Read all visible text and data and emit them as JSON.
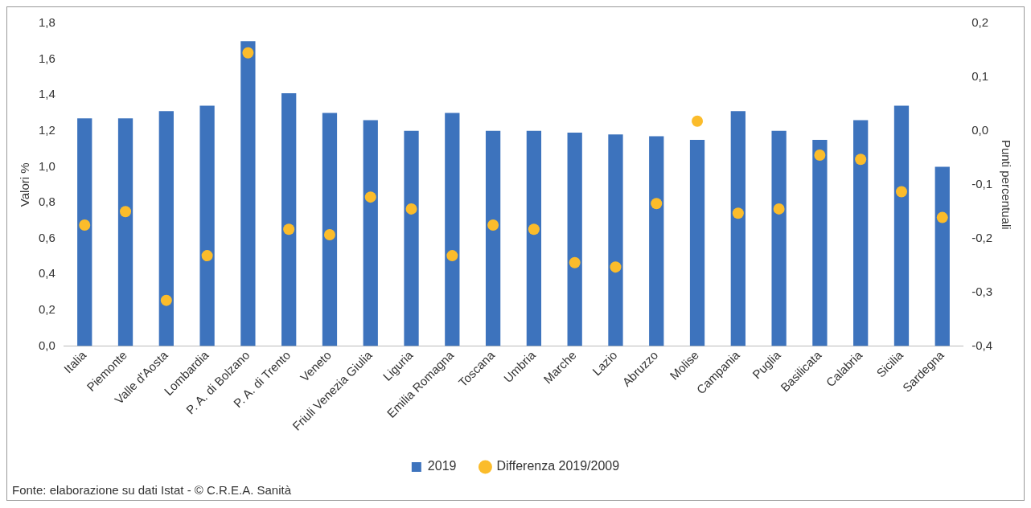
{
  "chart_data": {
    "type": "bar",
    "ylabel": "Valori %",
    "y2label": "Punti percentuali",
    "categories": [
      "Italia",
      "Piemonte",
      "Valle d'Aosta",
      "Lombardia",
      "P. A. di Bolzano",
      "P. A. di Trento",
      "Veneto",
      "Friuli Venezia Giulia",
      "Liguria",
      "Emilia Romagna",
      "Toscana",
      "Umbria",
      "Marche",
      "Lazio",
      "Abruzzo",
      "Molise",
      "Campania",
      "Puglia",
      "Basilicata",
      "Calabria",
      "Sicilia",
      "Sardegna"
    ],
    "series": [
      {
        "name": "2019",
        "color": "#3d73bd",
        "values": [
          1.27,
          1.27,
          1.31,
          1.34,
          1.7,
          1.41,
          1.3,
          1.26,
          1.2,
          1.3,
          1.2,
          1.2,
          1.19,
          1.18,
          1.17,
          1.15,
          1.31,
          1.2,
          1.15,
          1.26,
          1.34,
          1.0
        ]
      },
      {
        "name": "Differenza 2019/2009",
        "type": "scatter",
        "axis": "y2",
        "color": "#fbbc2b",
        "marker": "circle",
        "x": [
          "Italia",
          "Piemonte",
          "Valle d'Aosta",
          "Lombardia",
          "P. A. di Bolzano",
          "P. A. di Trento",
          "Veneto",
          "Friuli Venezia Giulia",
          "Liguria",
          "Emilia Romagna",
          "Toscana",
          "Umbria",
          "Marche",
          "Lazio",
          "Abruzzo",
          "Molise",
          "Campania",
          "Puglia",
          "Basilicata",
          "Calabria",
          "Sicilia",
          "Sardegna"
        ],
        "values": [
          -0.175,
          -0.15,
          -0.315,
          -0.232,
          0.145,
          -0.183,
          -0.193,
          -0.123,
          -0.145,
          -0.232,
          -0.175,
          -0.183,
          -0.245,
          -0.253,
          -0.135,
          0.018,
          -0.153,
          -0.145,
          -0.045,
          -0.053,
          -0.113,
          -0.161
        ]
      }
    ],
    "ylim": [
      0,
      1.8
    ],
    "yticks": [
      {
        "value": 0,
        "label": "0,0"
      },
      {
        "value": 0.2,
        "label": "0,2"
      },
      {
        "value": 0.4,
        "label": "0,4"
      },
      {
        "value": 0.6,
        "label": "0,6"
      },
      {
        "value": 0.8,
        "label": "0,8"
      },
      {
        "value": 1,
        "label": "1,0"
      },
      {
        "value": 1.2,
        "label": "1,2"
      },
      {
        "value": 1.4,
        "label": "1,4"
      },
      {
        "value": 1.6,
        "label": "1,6"
      },
      {
        "value": 1.8,
        "label": "1,8"
      }
    ],
    "y2lim": [
      -0.4,
      0.2
    ],
    "y2ticks": [
      {
        "value": -0.4,
        "label": "-0,4"
      },
      {
        "value": -0.3,
        "label": "-0,3"
      },
      {
        "value": -0.2,
        "label": "-0,2"
      },
      {
        "value": -0.1,
        "label": "-0,1"
      },
      {
        "value": 0,
        "label": "0,0"
      },
      {
        "value": 0.1,
        "label": "0,1"
      },
      {
        "value": 0.2,
        "label": "0,2"
      }
    ],
    "grid": false,
    "legend": "bottom",
    "annotations": [
      "Fonte: elaborazione su dati Istat - © C.R.E.A. Sanità"
    ]
  }
}
